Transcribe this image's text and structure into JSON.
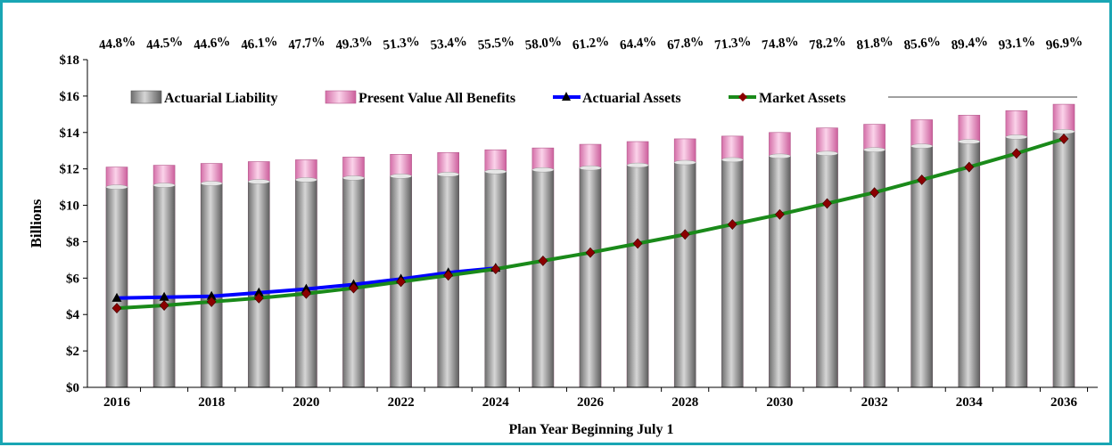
{
  "chart_data": {
    "type": "bar",
    "title": "",
    "xlabel": "Plan Year Beginning July 1",
    "ylabel": "Billions",
    "ylim": [
      0,
      18
    ],
    "yticks": [
      0,
      2,
      4,
      6,
      8,
      10,
      12,
      14,
      16,
      18
    ],
    "ytick_labels": [
      "$0",
      "$2",
      "$4",
      "$6",
      "$8",
      "$10",
      "$12",
      "$14",
      "$16",
      "$18"
    ],
    "categories": [
      "2016",
      "2017",
      "2018",
      "2019",
      "2020",
      "2021",
      "2022",
      "2023",
      "2024",
      "2025",
      "2026",
      "2027",
      "2028",
      "2029",
      "2030",
      "2031",
      "2032",
      "2033",
      "2034",
      "2035",
      "2036"
    ],
    "xtick_labels": [
      "2016",
      "",
      "2018",
      "",
      "2020",
      "",
      "2022",
      "",
      "2024",
      "",
      "2026",
      "",
      "2028",
      "",
      "2030",
      "",
      "2032",
      "",
      "2034",
      "",
      "2036"
    ],
    "funded_ratios": [
      "44.8%",
      "44.5%",
      "44.6%",
      "46.1%",
      "47.7%",
      "49.3%",
      "51.3%",
      "53.4%",
      "55.5%",
      "58.0%",
      "61.2%",
      "64.4%",
      "67.8%",
      "71.3%",
      "74.8%",
      "78.2%",
      "81.8%",
      "85.6%",
      "89.4%",
      "93.1%",
      "96.9%"
    ],
    "legend_position": "top-left, inside plot",
    "grid": false,
    "series": [
      {
        "name": "Actuarial Liability",
        "kind": "bar",
        "color": "#8c8c8c",
        "values": [
          11.0,
          11.1,
          11.2,
          11.3,
          11.4,
          11.5,
          11.6,
          11.7,
          11.85,
          11.95,
          12.05,
          12.2,
          12.35,
          12.5,
          12.7,
          12.85,
          13.05,
          13.25,
          13.5,
          13.75,
          14.05
        ]
      },
      {
        "name": "Present Value All Benefits",
        "kind": "bar",
        "color": "#f6a3d3",
        "values": [
          12.1,
          12.2,
          12.3,
          12.4,
          12.5,
          12.65,
          12.8,
          12.9,
          13.05,
          13.15,
          13.35,
          13.5,
          13.65,
          13.8,
          14.0,
          14.25,
          14.45,
          14.7,
          14.95,
          15.2,
          15.55
        ]
      },
      {
        "name": "Actuarial Assets",
        "kind": "line",
        "color": "#0000ff",
        "marker": "triangle",
        "values": [
          4.9,
          4.95,
          5.0,
          5.2,
          5.4,
          5.65,
          5.95,
          6.3,
          6.55,
          null,
          null,
          null,
          null,
          null,
          null,
          null,
          null,
          null,
          null,
          null,
          null
        ]
      },
      {
        "name": "Market Assets",
        "kind": "line",
        "color": "#1a8a1a",
        "marker": "diamond",
        "marker_color": "#8b0000",
        "values": [
          4.35,
          4.5,
          4.7,
          4.9,
          5.15,
          5.45,
          5.8,
          6.15,
          6.5,
          6.95,
          7.4,
          7.9,
          8.4,
          8.95,
          9.5,
          10.1,
          10.7,
          11.4,
          12.1,
          12.85,
          13.65
        ]
      }
    ]
  }
}
